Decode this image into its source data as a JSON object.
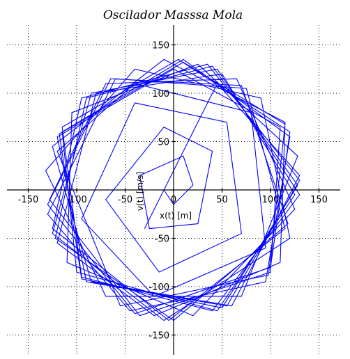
{
  "chart_data": {
    "type": "line",
    "title": "Oscilador Masssa Mola",
    "xlabel": "x(t) [m]",
    "ylabel": "v(t) [m/s]",
    "xlim": [
      -170,
      170
    ],
    "ylim": [
      -170,
      170
    ],
    "grid": true,
    "x_ticks": [
      -150,
      -100,
      -50,
      0,
      50,
      100,
      150
    ],
    "y_ticks": [
      -150,
      -100,
      -50,
      50,
      100,
      150
    ],
    "x_tick_labels": [
      "-150",
      "-100",
      "-50",
      "0",
      "50",
      "100",
      "150"
    ],
    "y_tick_labels": [
      "-150",
      "-100",
      "-50",
      "50",
      "100",
      "150"
    ],
    "series_color": "#0000ff",
    "series": [
      {
        "values": [
          [
            -30,
            -40
          ],
          [
            45,
            110
          ],
          [
            130,
            15
          ],
          [
            60,
            -120
          ],
          [
            -85,
            -95
          ],
          [
            -125,
            45
          ],
          [
            -10,
            135
          ],
          [
            115,
            70
          ],
          [
            110,
            -75
          ],
          [
            -20,
            -130
          ],
          [
            -120,
            -55
          ],
          [
            -80,
            100
          ],
          [
            50,
            120
          ],
          [
            125,
            -5
          ],
          [
            45,
            -125
          ],
          [
            -100,
            -85
          ],
          [
            -115,
            60
          ],
          [
            10,
            135
          ],
          [
            120,
            55
          ],
          [
            95,
            -95
          ],
          [
            -45,
            -125
          ],
          [
            -130,
            -25
          ],
          [
            -60,
            115
          ],
          [
            75,
            105
          ],
          [
            115,
            -40
          ],
          [
            -5,
            -135
          ],
          [
            -125,
            -40
          ],
          [
            -95,
            95
          ],
          [
            35,
            130
          ],
          [
            130,
            10
          ],
          [
            55,
            -120
          ],
          [
            -90,
            -95
          ],
          [
            -120,
            55
          ],
          [
            0,
            125
          ],
          [
            110,
            65
          ],
          [
            100,
            -85
          ],
          [
            -35,
            -130
          ],
          [
            -128,
            -10
          ],
          [
            -70,
            110
          ],
          [
            65,
            115
          ],
          [
            125,
            -20
          ],
          [
            20,
            -130
          ],
          [
            -110,
            -75
          ],
          [
            -105,
            80
          ],
          [
            25,
            130
          ],
          [
            128,
            35
          ],
          [
            70,
            -110
          ],
          [
            -70,
            -110
          ],
          [
            -132,
            20
          ],
          [
            -40,
            125
          ],
          [
            90,
            95
          ],
          [
            120,
            -50
          ],
          [
            -10,
            -135
          ],
          [
            -125,
            -45
          ],
          [
            -85,
            100
          ],
          [
            45,
            125
          ],
          [
            130,
            -5
          ],
          [
            40,
            -125
          ],
          [
            -95,
            -90
          ],
          [
            -115,
            65
          ],
          [
            5,
            135
          ],
          [
            120,
            60
          ],
          [
            100,
            -80
          ],
          [
            -40,
            -128
          ],
          [
            -130,
            -15
          ],
          [
            -65,
            115
          ],
          [
            70,
            108
          ],
          [
            118,
            -35
          ],
          [
            0,
            -135
          ],
          [
            -122,
            -50
          ],
          [
            -90,
            95
          ],
          [
            40,
            128
          ],
          [
            128,
            5
          ],
          [
            50,
            -122
          ],
          [
            -95,
            -92
          ],
          [
            -118,
            58
          ],
          [
            10,
            132
          ],
          [
            115,
            68
          ],
          [
            98,
            -88
          ],
          [
            -55,
            -120
          ],
          [
            -120,
            40
          ],
          [
            -40,
            110
          ],
          [
            80,
            80
          ],
          [
            95,
            -60
          ],
          [
            -20,
            -110
          ],
          [
            -95,
            -30
          ],
          [
            -40,
            90
          ],
          [
            55,
            70
          ],
          [
            70,
            -45
          ],
          [
            -15,
            -85
          ],
          [
            -70,
            -10
          ],
          [
            -10,
            65
          ],
          [
            40,
            40
          ],
          [
            25,
            -35
          ],
          [
            -25,
            -40
          ],
          [
            -35,
            15
          ],
          [
            10,
            35
          ],
          [
            20,
            5
          ],
          [
            0,
            -15
          ],
          [
            -10,
            0
          ]
        ]
      }
    ]
  }
}
